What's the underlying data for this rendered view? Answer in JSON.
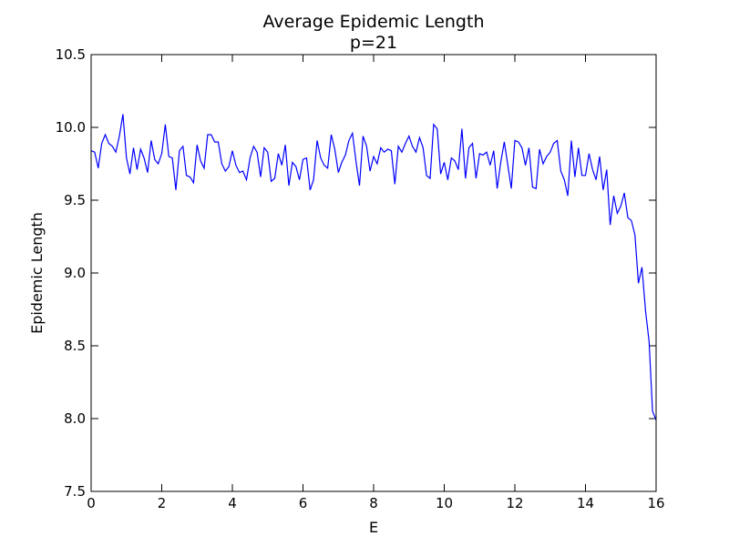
{
  "chart_data": {
    "type": "line",
    "title": "Average Epidemic Length",
    "subtitle": "p=21",
    "xlabel": "E",
    "ylabel": "Epidemic Length",
    "xlim": [
      0,
      16
    ],
    "ylim": [
      7.5,
      10.5
    ],
    "xticks": [
      "0",
      "2",
      "4",
      "6",
      "8",
      "10",
      "12",
      "14",
      "16"
    ],
    "yticks": [
      "7.5",
      "8.0",
      "8.5",
      "9.0",
      "9.5",
      "10.0",
      "10.5"
    ],
    "grid": false,
    "series": [
      {
        "color": "#0000ff",
        "x": [
          0.0,
          0.1,
          0.2,
          0.3,
          0.4,
          0.5,
          0.6,
          0.7,
          0.8,
          0.9,
          1.0,
          1.1,
          1.2,
          1.3,
          1.4,
          1.5,
          1.6,
          1.7,
          1.8,
          1.9,
          2.0,
          2.1,
          2.2,
          2.3,
          2.4,
          2.5,
          2.6,
          2.7,
          2.8,
          2.9,
          3.0,
          3.1,
          3.2,
          3.3,
          3.4,
          3.5,
          3.6,
          3.7,
          3.8,
          3.9,
          4.0,
          4.1,
          4.2,
          4.3,
          4.4,
          4.5,
          4.6,
          4.7,
          4.8,
          4.9,
          5.0,
          5.1,
          5.2,
          5.3,
          5.4,
          5.5,
          5.6,
          5.7,
          5.8,
          5.9,
          6.0,
          6.1,
          6.2,
          6.3,
          6.4,
          6.5,
          6.6,
          6.7,
          6.8,
          6.9,
          7.0,
          7.1,
          7.2,
          7.3,
          7.4,
          7.5,
          7.6,
          7.7,
          7.8,
          7.9,
          8.0,
          8.1,
          8.2,
          8.3,
          8.4,
          8.5,
          8.6,
          8.7,
          8.8,
          8.9,
          9.0,
          9.1,
          9.2,
          9.3,
          9.4,
          9.5,
          9.6,
          9.7,
          9.8,
          9.9,
          10.0,
          10.1,
          10.2,
          10.3,
          10.4,
          10.5,
          10.6,
          10.7,
          10.8,
          10.9,
          11.0,
          11.1,
          11.2,
          11.3,
          11.4,
          11.5,
          11.6,
          11.7,
          11.8,
          11.9,
          12.0,
          12.1,
          12.2,
          12.3,
          12.4,
          12.5,
          12.6,
          12.7,
          12.8,
          12.9,
          13.0,
          13.1,
          13.2,
          13.3,
          13.4,
          13.5,
          13.6,
          13.7,
          13.8,
          13.9,
          14.0,
          14.1,
          14.2,
          14.3,
          14.4,
          14.5,
          14.6,
          14.7,
          14.8,
          14.9,
          15.0,
          15.1,
          15.2,
          15.3,
          15.4,
          15.5,
          15.6,
          15.7,
          15.8,
          15.9,
          16.0
        ],
        "y": [
          9.84,
          9.83,
          9.72,
          9.89,
          9.95,
          9.89,
          9.87,
          9.83,
          9.94,
          10.09,
          9.79,
          9.68,
          9.86,
          9.71,
          9.85,
          9.79,
          9.69,
          9.91,
          9.78,
          9.75,
          9.82,
          10.02,
          9.8,
          9.79,
          9.57,
          9.84,
          9.87,
          9.67,
          9.66,
          9.62,
          9.88,
          9.77,
          9.72,
          9.95,
          9.95,
          9.9,
          9.9,
          9.75,
          9.7,
          9.73,
          9.84,
          9.74,
          9.69,
          9.7,
          9.64,
          9.79,
          9.87,
          9.83,
          9.66,
          9.86,
          9.83,
          9.63,
          9.65,
          9.82,
          9.74,
          9.88,
          9.6,
          9.76,
          9.73,
          9.64,
          9.78,
          9.79,
          9.57,
          9.64,
          9.91,
          9.79,
          9.74,
          9.72,
          9.95,
          9.85,
          9.69,
          9.76,
          9.81,
          9.91,
          9.96,
          9.77,
          9.6,
          9.94,
          9.87,
          9.7,
          9.8,
          9.75,
          9.86,
          9.83,
          9.85,
          9.84,
          9.61,
          9.87,
          9.83,
          9.89,
          9.94,
          9.87,
          9.83,
          9.93,
          9.86,
          9.67,
          9.65,
          10.02,
          9.99,
          9.68,
          9.76,
          9.64,
          9.79,
          9.77,
          9.71,
          9.99,
          9.65,
          9.86,
          9.89,
          9.65,
          9.82,
          9.81,
          9.83,
          9.74,
          9.84,
          9.58,
          9.76,
          9.9,
          9.74,
          9.58,
          9.91,
          9.9,
          9.86,
          9.74,
          9.86,
          9.59,
          9.58,
          9.85,
          9.75,
          9.8,
          9.83,
          9.89,
          9.91,
          9.7,
          9.64,
          9.53,
          9.91,
          9.66,
          9.86,
          9.67,
          9.67,
          9.82,
          9.71,
          9.64,
          9.8,
          9.57,
          9.71,
          9.33,
          9.53,
          9.41,
          9.46,
          9.55,
          9.38,
          9.36,
          9.26,
          8.93,
          9.04,
          8.74,
          8.53,
          8.05,
          7.99
        ]
      }
    ]
  }
}
